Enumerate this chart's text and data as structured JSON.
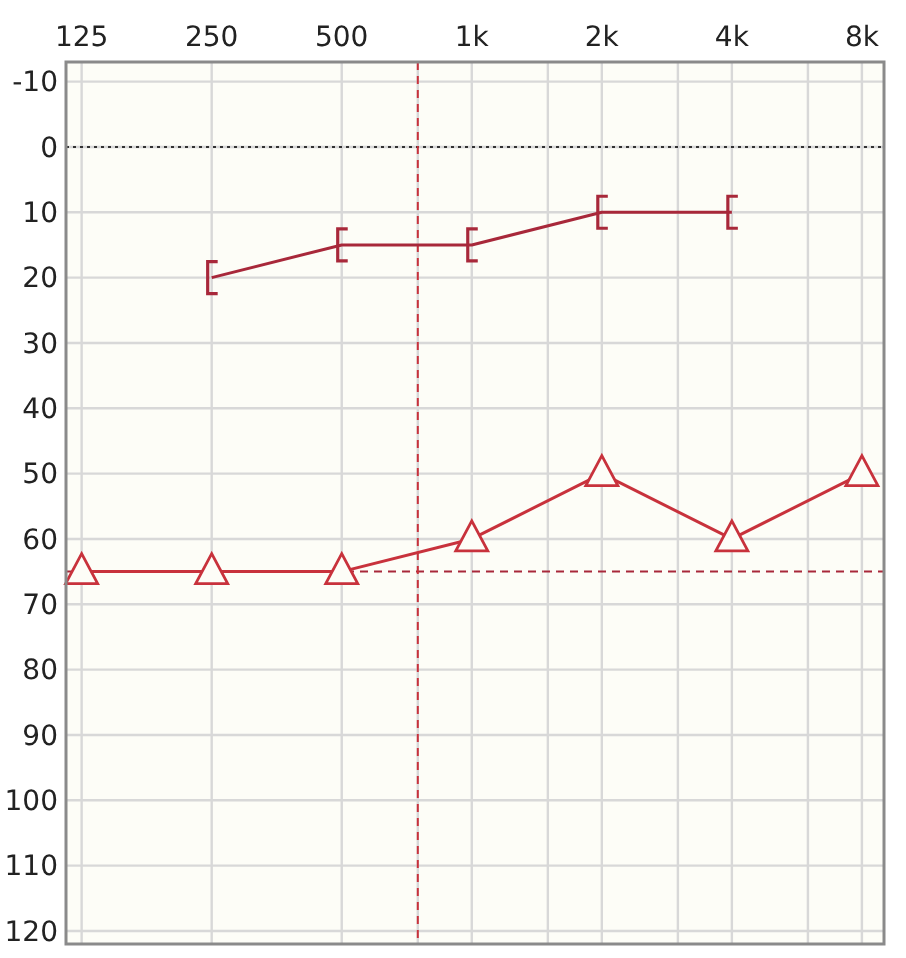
{
  "chart_data": {
    "type": "line",
    "xlim": [
      115,
      9000
    ],
    "log": "x",
    "xticks": [
      125,
      250,
      500,
      {
        "value": 750,
        "label": null
      },
      {
        "value": 1000,
        "label": "1k"
      },
      {
        "value": 1500,
        "label": null
      },
      {
        "value": 2000,
        "label": "2k"
      },
      {
        "value": 3000,
        "label": null
      },
      {
        "value": 4000,
        "label": "4k"
      },
      {
        "value": 6000,
        "label": null
      },
      {
        "value": 8000,
        "label": "8k"
      }
    ],
    "ylim": [
      122,
      -13
    ],
    "yticks": [
      -10,
      0,
      10,
      20,
      30,
      40,
      50,
      60,
      70,
      80,
      90,
      100,
      110,
      120
    ],
    "grid": true,
    "line_style": "solid",
    "series": [
      {
        "color": "#c8323c",
        "marker": "triangle",
        "x": [
          125,
          250,
          500,
          1000,
          2000,
          4000,
          8000
        ],
        "values": [
          65,
          65,
          65,
          60,
          50,
          60,
          50
        ]
      },
      {
        "color": "#a8283a",
        "marker": "cross",
        "x": [
          250,
          500,
          1000,
          2000,
          4000
        ],
        "values": [
          20,
          15,
          15,
          10,
          10
        ]
      }
    ],
    "ref_lines": [
      {
        "axis": "y",
        "value": 0,
        "color": "#333333",
        "line_style": "dotted"
      },
      {
        "axis": "y",
        "value": 65,
        "color": "#a8283a",
        "line_style": "dashed"
      },
      {
        "axis": "x",
        "value": 750,
        "color": "#c8323c",
        "line_style": "dashed"
      }
    ]
  }
}
